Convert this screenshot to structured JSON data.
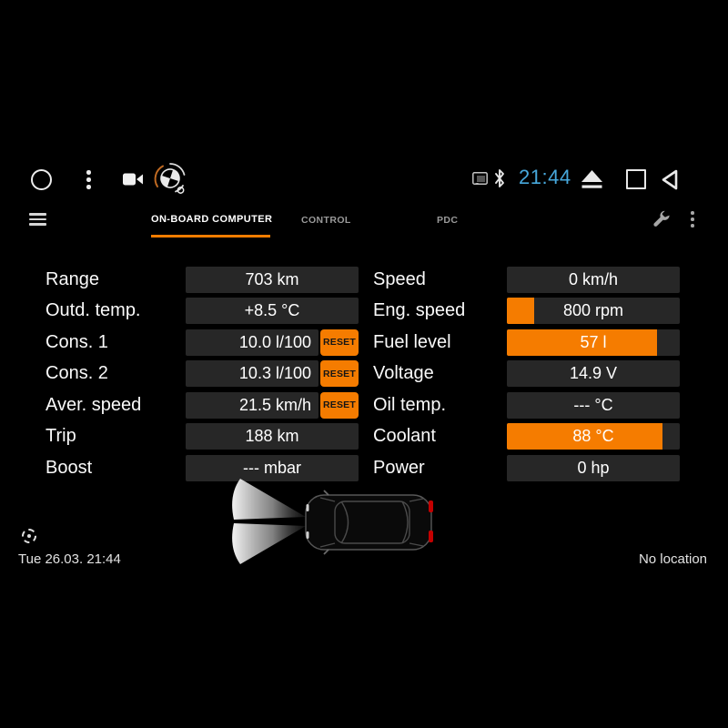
{
  "statusbar": {
    "time": "21:44"
  },
  "tabbar": {
    "tabs": [
      {
        "label": "ON-BOARD COMPUTER",
        "active": true
      },
      {
        "label": "CONTROL",
        "active": false
      },
      {
        "label": "PDC",
        "active": false
      }
    ]
  },
  "obc": {
    "reset_label": "RESET",
    "left_rows": [
      {
        "label": "Range",
        "value": "703 km"
      },
      {
        "label": "Outd. temp.",
        "value": "+8.5 °C"
      },
      {
        "label": "Cons. 1",
        "value": "10.0 l/100",
        "reset": true
      },
      {
        "label": "Cons. 2",
        "value": "10.3 l/100",
        "reset": true
      },
      {
        "label": "Aver. speed",
        "value": "21.5 km/h",
        "reset": true
      },
      {
        "label": "Trip",
        "value": "188 km"
      },
      {
        "label": "Boost",
        "value": "--- mbar"
      }
    ],
    "right_rows": [
      {
        "label": "Speed",
        "value": "0 km/h",
        "fill": 0
      },
      {
        "label": "Eng. speed",
        "value": "800 rpm",
        "fill": 16
      },
      {
        "label": "Fuel level",
        "value": "57 l",
        "fill": 87
      },
      {
        "label": "Voltage",
        "value": "14.9 V",
        "fill": 0
      },
      {
        "label": "Oil temp.",
        "value": "--- °C",
        "fill": 0
      },
      {
        "label": "Coolant",
        "value": "88 °C",
        "fill": 90
      },
      {
        "label": "Power",
        "value": "0 hp",
        "fill": 0
      }
    ]
  },
  "footer": {
    "datetime": "Tue 26.03. 21:44",
    "location": "No location"
  },
  "colors": {
    "accent": "#f57c00",
    "time_blue": "#47a8dc",
    "box_bg": "#272727"
  }
}
